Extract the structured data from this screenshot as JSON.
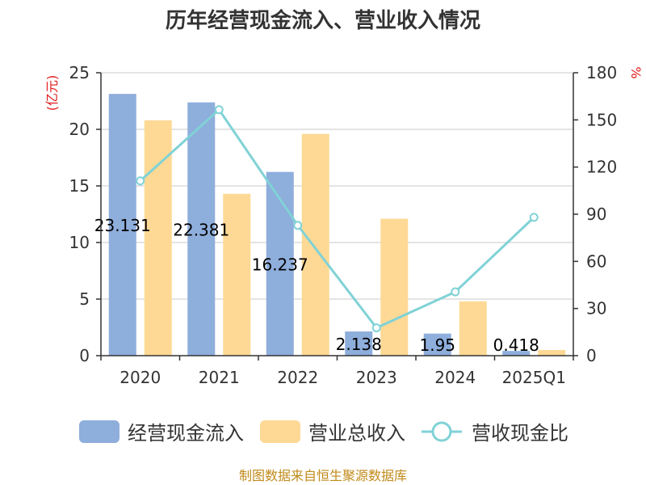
{
  "colors": {
    "cash_inflow": "#8eaedc",
    "revenue": "#fed995",
    "ratio_line": "#80d2d6",
    "axis": "#333333",
    "grid": "#c8c8c8",
    "unit_label": "#e01b1b",
    "source_text": "#c08a1a"
  },
  "source": "制图数据来自恒生聚源数据库",
  "chart_data": {
    "type": "bar",
    "title": "历年经营现金流入、营业收入情况",
    "y_left_unit": "(亿元)",
    "y_right_unit": "%",
    "categories": [
      "2020",
      "2021",
      "2022",
      "2023",
      "2024",
      "2025Q1"
    ],
    "y_left_ticks": [
      "0",
      "5",
      "10",
      "15",
      "20",
      "25"
    ],
    "y_right_ticks": [
      "0",
      "30",
      "60",
      "90",
      "120",
      "150",
      "180"
    ],
    "y_left_range": [
      0,
      25
    ],
    "y_right_range": [
      0,
      180
    ],
    "grid": true,
    "legend_position": "bottom",
    "series": [
      {
        "name": "经营现金流入",
        "type": "bar",
        "axis": "left",
        "values": [
          23.131,
          22.381,
          16.237,
          2.138,
          1.95,
          0.418
        ]
      },
      {
        "name": "营业总收入",
        "type": "bar",
        "axis": "left",
        "values": [
          20.8,
          14.3,
          19.6,
          12.1,
          4.8,
          0.5
        ]
      },
      {
        "name": "营收现金比",
        "type": "line",
        "axis": "right",
        "values": [
          111.2,
          156.5,
          82.9,
          17.7,
          40.6,
          88.0
        ]
      }
    ],
    "data_labels": [
      "23.131",
      "22.381",
      "16.237",
      "2.138",
      "1.95",
      "0.418"
    ]
  }
}
